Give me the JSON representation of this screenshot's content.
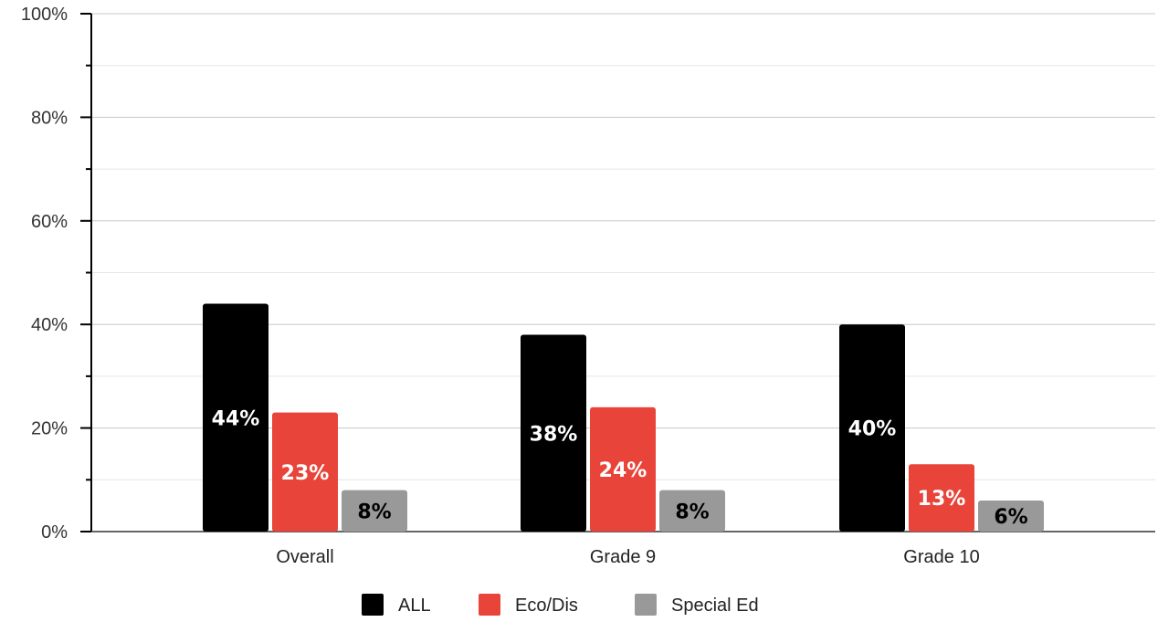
{
  "chart_data": {
    "type": "bar",
    "title": "",
    "xlabel": "",
    "ylabel": "",
    "categories": [
      "Overall",
      "Grade 9",
      "Grade 10"
    ],
    "series": [
      {
        "name": "ALL",
        "color": "#000000",
        "label_color": "#ffffff",
        "values": [
          44,
          38,
          40
        ],
        "labels": [
          "44%",
          "38%",
          "40%"
        ]
      },
      {
        "name": "Eco/Dis",
        "color": "#e8443a",
        "label_color": "#ffffff",
        "values": [
          23,
          24,
          13
        ],
        "labels": [
          "23%",
          "24%",
          "13%"
        ]
      },
      {
        "name": "Special Ed",
        "color": "#999999",
        "label_color": "#000000",
        "values": [
          8,
          8,
          6
        ],
        "labels": [
          "8%",
          "8%",
          "6%"
        ]
      }
    ],
    "ylim": [
      0,
      100
    ],
    "y_ticks": [
      0,
      20,
      40,
      60,
      80,
      100
    ],
    "y_tick_labels": [
      "0%",
      "20%",
      "40%",
      "60%",
      "80%",
      "100%"
    ],
    "y_minor_ticks": [
      10,
      30,
      50,
      70,
      90
    ],
    "grid": true,
    "legend_position": "bottom-center"
  }
}
